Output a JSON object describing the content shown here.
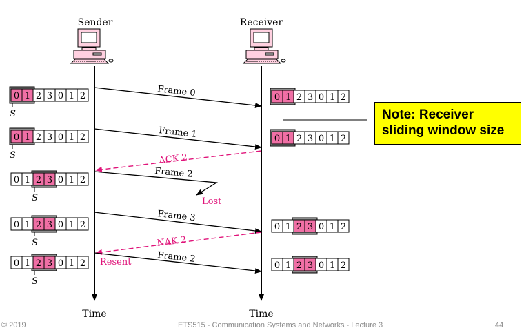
{
  "header": {
    "sender_label": "Sender",
    "receiver_label": "Receiver"
  },
  "timeline": {
    "sender_time_label": "Time",
    "receiver_time_label": "Time"
  },
  "frames": {
    "frame0": "Frame 0",
    "frame1": "Frame 1",
    "frame2": "Frame 2",
    "frame3": "Frame 3",
    "frame2_resent": "Frame 2"
  },
  "control": {
    "ack": "ACK 2",
    "nak": "NAK 2",
    "lost": "Lost",
    "resent": "Resent"
  },
  "window_marker": "S",
  "window_sequence": [
    "0",
    "1",
    "2",
    "3",
    "0",
    "1",
    "2"
  ],
  "note": {
    "text_line1": "Note: Receiver",
    "text_line2": "sliding window size"
  },
  "footer": {
    "copyright": "© 2019",
    "course": "ETS515 - Communication Systems and Networks - Lecture 3",
    "page": "44"
  },
  "colors": {
    "highlight": "#f06fa5",
    "window": "#8c8c8c",
    "control": "#e0147a",
    "note_bg": "#ffff00"
  }
}
